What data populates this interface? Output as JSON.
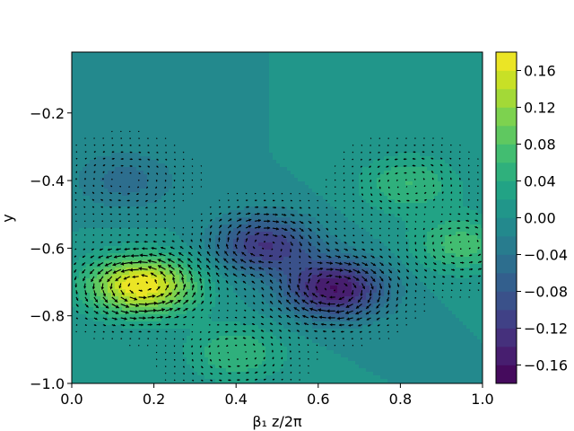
{
  "chart_data": {
    "type": "heatmap",
    "subtype": "filled-contour with quiver overlay",
    "title": "",
    "xlabel": "β₁ z/2π",
    "ylabel": "y",
    "xlim": [
      0.0,
      1.0
    ],
    "ylim": [
      -1.0,
      -0.02
    ],
    "x_ticks": [
      "0.0",
      "0.2",
      "0.4",
      "0.6",
      "0.8",
      "1.0"
    ],
    "x_tick_values": [
      0.0,
      0.2,
      0.4,
      0.6,
      0.8,
      1.0
    ],
    "y_ticks": [
      "−0.2",
      "−0.4",
      "−0.6",
      "−0.8",
      "−1.0"
    ],
    "y_tick_values": [
      -0.2,
      -0.4,
      -0.6,
      -0.8,
      -1.0
    ],
    "colormap": "viridis",
    "color_range": [
      -0.18,
      0.18
    ],
    "colorbar_ticks": [
      "0.16",
      "0.12",
      "0.08",
      "0.04",
      "0.00",
      "−0.04",
      "−0.08",
      "−0.12",
      "−0.16"
    ],
    "colorbar_tick_values": [
      0.16,
      0.12,
      0.08,
      0.04,
      0.0,
      -0.04,
      -0.08,
      -0.12,
      -0.16
    ],
    "contour_levels": [
      -0.18,
      -0.16,
      -0.14,
      -0.12,
      -0.1,
      -0.08,
      -0.06,
      -0.04,
      -0.02,
      0.0,
      0.02,
      0.04,
      0.06,
      0.08,
      0.1,
      0.12,
      0.14,
      0.16,
      0.18
    ],
    "features": [
      {
        "kind": "max",
        "x": 0.17,
        "y": -0.71,
        "value": 0.18
      },
      {
        "kind": "min",
        "x": 0.64,
        "y": -0.72,
        "value": -0.16
      },
      {
        "kind": "min",
        "x": 0.47,
        "y": -0.59,
        "value": -0.12
      },
      {
        "kind": "max",
        "x": 0.95,
        "y": -0.59,
        "value": 0.07
      },
      {
        "kind": "max",
        "x": 0.82,
        "y": -0.41,
        "value": 0.06
      },
      {
        "kind": "min",
        "x": 0.13,
        "y": -0.4,
        "value": -0.05
      },
      {
        "kind": "max",
        "x": 0.4,
        "y": -0.91,
        "value": 0.06
      }
    ]
  }
}
